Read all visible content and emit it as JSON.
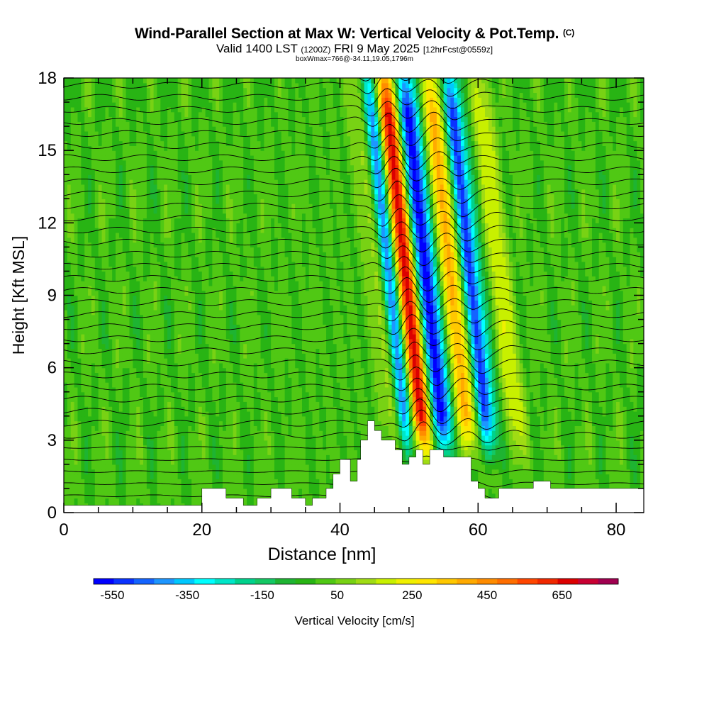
{
  "title": {
    "main": "Wind-Parallel Section at Max W: Vertical Velocity & Pot.Temp.",
    "copyright": "(C)",
    "valid_prefix": "Valid 1400 LST",
    "valid_utc": "(1200Z)",
    "valid_date": "FRI 9 May 2025",
    "forecast": "[12hrFcst@0559z]",
    "box_info": "boxWmax=766@-34.11,19.05,1796m"
  },
  "chart_data": {
    "type": "heatmap",
    "xlabel": "Distance [nm]",
    "ylabel": "Height [Kft MSL]",
    "xlim": [
      0,
      84
    ],
    "ylim": [
      0,
      18
    ],
    "x_ticks": [
      0,
      20,
      40,
      60,
      80
    ],
    "y_ticks": [
      0,
      3,
      6,
      9,
      12,
      15,
      18
    ],
    "colorbar": {
      "label": "Vertical Velocity [cm/s]",
      "tick_labels": [
        "-550",
        "-350",
        "-150",
        "50",
        "250",
        "450",
        "650"
      ],
      "tick_values": [
        -550,
        -350,
        -150,
        50,
        250,
        450,
        650
      ],
      "range": [
        -600,
        800
      ],
      "colors": [
        "#0000ff",
        "#0a32ff",
        "#1464ff",
        "#1e96ff",
        "#00c8ff",
        "#00ffff",
        "#00e6c8",
        "#00d28c",
        "#14c864",
        "#1eb432",
        "#28b414",
        "#50c814",
        "#78d214",
        "#a0dc14",
        "#c8f000",
        "#f0f000",
        "#ffe600",
        "#ffc800",
        "#ffaa00",
        "#ff8c00",
        "#ff6e00",
        "#ff4600",
        "#f02800",
        "#dc0000",
        "#c80032",
        "#a00050"
      ]
    },
    "terrain_kft": [
      [
        0,
        0.3
      ],
      [
        10,
        0.3
      ],
      [
        20,
        0.3
      ],
      [
        20,
        1
      ],
      [
        23.5,
        1
      ],
      [
        23.5,
        0.6
      ],
      [
        25,
        0.6
      ],
      [
        26,
        0.6
      ],
      [
        26,
        0.3
      ],
      [
        28,
        0.3
      ],
      [
        28,
        0.6
      ],
      [
        30,
        0.6
      ],
      [
        30,
        1
      ],
      [
        33,
        1
      ],
      [
        33,
        0.6
      ],
      [
        35,
        0.6
      ],
      [
        35,
        0.3
      ],
      [
        36,
        0.3
      ],
      [
        36,
        0.6
      ],
      [
        38,
        0.6
      ],
      [
        38,
        1
      ],
      [
        39,
        1
      ],
      [
        39,
        1.6
      ],
      [
        40,
        1.6
      ],
      [
        40,
        2.2
      ],
      [
        41.5,
        2.2
      ],
      [
        41.5,
        1.3
      ],
      [
        42.5,
        1.3
      ],
      [
        42.5,
        2.2
      ],
      [
        43,
        2.2
      ],
      [
        43,
        3.0
      ],
      [
        44,
        3.0
      ],
      [
        44,
        3.8
      ],
      [
        45,
        3.8
      ],
      [
        45,
        3.4
      ],
      [
        46,
        3.4
      ],
      [
        46,
        3.0
      ],
      [
        48,
        3.0
      ],
      [
        48,
        2.6
      ],
      [
        49,
        2.6
      ],
      [
        49,
        2.0
      ],
      [
        50,
        2.0
      ],
      [
        50,
        2.3
      ],
      [
        51,
        2.3
      ],
      [
        51,
        2.6
      ],
      [
        52,
        2.6
      ],
      [
        52,
        2.0
      ],
      [
        53,
        2.0
      ],
      [
        53,
        2.6
      ],
      [
        55,
        2.6
      ],
      [
        55,
        2.3
      ],
      [
        59,
        2.3
      ],
      [
        59,
        1.3
      ],
      [
        60,
        1.3
      ],
      [
        60,
        1.0
      ],
      [
        61,
        1.0
      ],
      [
        61,
        0.6
      ],
      [
        63,
        0.6
      ],
      [
        63,
        1.0
      ],
      [
        68,
        1.0
      ],
      [
        68,
        1.3
      ],
      [
        70.5,
        1.3
      ],
      [
        70.5,
        1.0
      ],
      [
        76,
        1.0
      ],
      [
        84,
        1.0
      ]
    ],
    "updraft_cores": [
      {
        "x_kft": 49.7,
        "w": 750
      },
      {
        "x_kft": 56.5,
        "w": 420
      },
      {
        "x_kft": 46.0,
        "w": 220
      },
      {
        "x_kft": 63.5,
        "w": 200
      }
    ],
    "downdraft_cores": [
      {
        "x_kft": 47.5,
        "w": -560
      },
      {
        "x_kft": 52.8,
        "w": -600
      },
      {
        "x_kft": 59.2,
        "w": -520
      }
    ]
  }
}
